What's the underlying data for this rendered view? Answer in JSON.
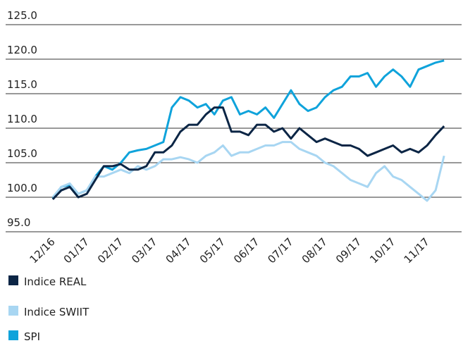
{
  "chart_data": {
    "type": "line",
    "x": [
      0,
      0.25,
      0.5,
      0.75,
      1,
      1.25,
      1.5,
      1.75,
      2,
      2.25,
      2.5,
      2.75,
      3,
      3.25,
      3.5,
      3.75,
      4,
      4.25,
      4.5,
      4.75,
      5,
      5.25,
      5.5,
      5.75,
      6,
      6.25,
      6.5,
      6.75,
      7,
      7.25,
      7.5,
      7.75,
      8,
      8.25,
      8.5,
      8.75,
      9,
      9.25,
      9.5,
      9.75,
      10,
      10.25,
      10.5,
      10.75,
      11,
      11.25,
      11.5
    ],
    "series": [
      {
        "name": "Indice REAL",
        "color": "#0b2545",
        "values": [
          99.7,
          101,
          101.5,
          100,
          100.5,
          102.5,
          104.5,
          104.5,
          104.8,
          104,
          104,
          104.5,
          106.5,
          106.5,
          107.5,
          109.5,
          110.5,
          110.5,
          112,
          113,
          113,
          109.5,
          109.5,
          109,
          110.5,
          110.5,
          109.5,
          110,
          108.5,
          110,
          109,
          108,
          108.5,
          108,
          107.5,
          107.5,
          107,
          106,
          106.5,
          107,
          107.5,
          106.5,
          107,
          106.5,
          107.5,
          109,
          110.3
        ]
      },
      {
        "name": "Indice SWIIT",
        "color": "#a8d6f2",
        "values": [
          100,
          101.5,
          102,
          100.5,
          101,
          103,
          103,
          103.5,
          104,
          103.5,
          104.5,
          104,
          104.5,
          105.5,
          105.5,
          105.8,
          105.5,
          105,
          106,
          106.5,
          107.5,
          106,
          106.5,
          106.5,
          107,
          107.5,
          107.5,
          108,
          108,
          107,
          106.5,
          106,
          105,
          104.5,
          103.5,
          102.5,
          102,
          101.5,
          103.5,
          104.5,
          103,
          102.5,
          101.5,
          100.5,
          99.5,
          101,
          106
        ]
      },
      {
        "name": "SPI",
        "color": "#0fa3db",
        "values": [
          99.8,
          101.5,
          101.8,
          100.5,
          101,
          103,
          104.5,
          104,
          105,
          106.5,
          106.8,
          107,
          107.5,
          108,
          113,
          114.5,
          114,
          113,
          113.5,
          112,
          114,
          114.5,
          112,
          112.5,
          112,
          113,
          111.5,
          113.5,
          115.5,
          113.5,
          112.5,
          113,
          114.5,
          115.5,
          116,
          117.5,
          117.5,
          118,
          116,
          117.5,
          118.5,
          117.5,
          116,
          118.5,
          119,
          119.5,
          119.8
        ]
      }
    ],
    "xlim": [
      -0.06,
      11.6
    ],
    "xticks": [
      {
        "value": 0,
        "label": "12/16"
      },
      {
        "value": 1,
        "label": "01/17"
      },
      {
        "value": 2,
        "label": "02/17"
      },
      {
        "value": 3,
        "label": "03/17"
      },
      {
        "value": 4,
        "label": "04/17"
      },
      {
        "value": 5,
        "label": "05/17"
      },
      {
        "value": 6,
        "label": "06/17"
      },
      {
        "value": 7,
        "label": "07/17"
      },
      {
        "value": 8,
        "label": "08/17"
      },
      {
        "value": 9,
        "label": "09/17"
      },
      {
        "value": 10,
        "label": "10/17"
      },
      {
        "value": 11,
        "label": "11/17"
      }
    ],
    "ylim": [
      95,
      125
    ],
    "yticks": [
      {
        "value": 95,
        "label": "95.0"
      },
      {
        "value": 100,
        "label": "100.0"
      },
      {
        "value": 105,
        "label": "105.0"
      },
      {
        "value": 110,
        "label": "110.0"
      },
      {
        "value": 115,
        "label": "115.0"
      },
      {
        "value": 120,
        "label": "120.0"
      },
      {
        "value": 125,
        "label": "125.0"
      }
    ],
    "grid": true
  }
}
